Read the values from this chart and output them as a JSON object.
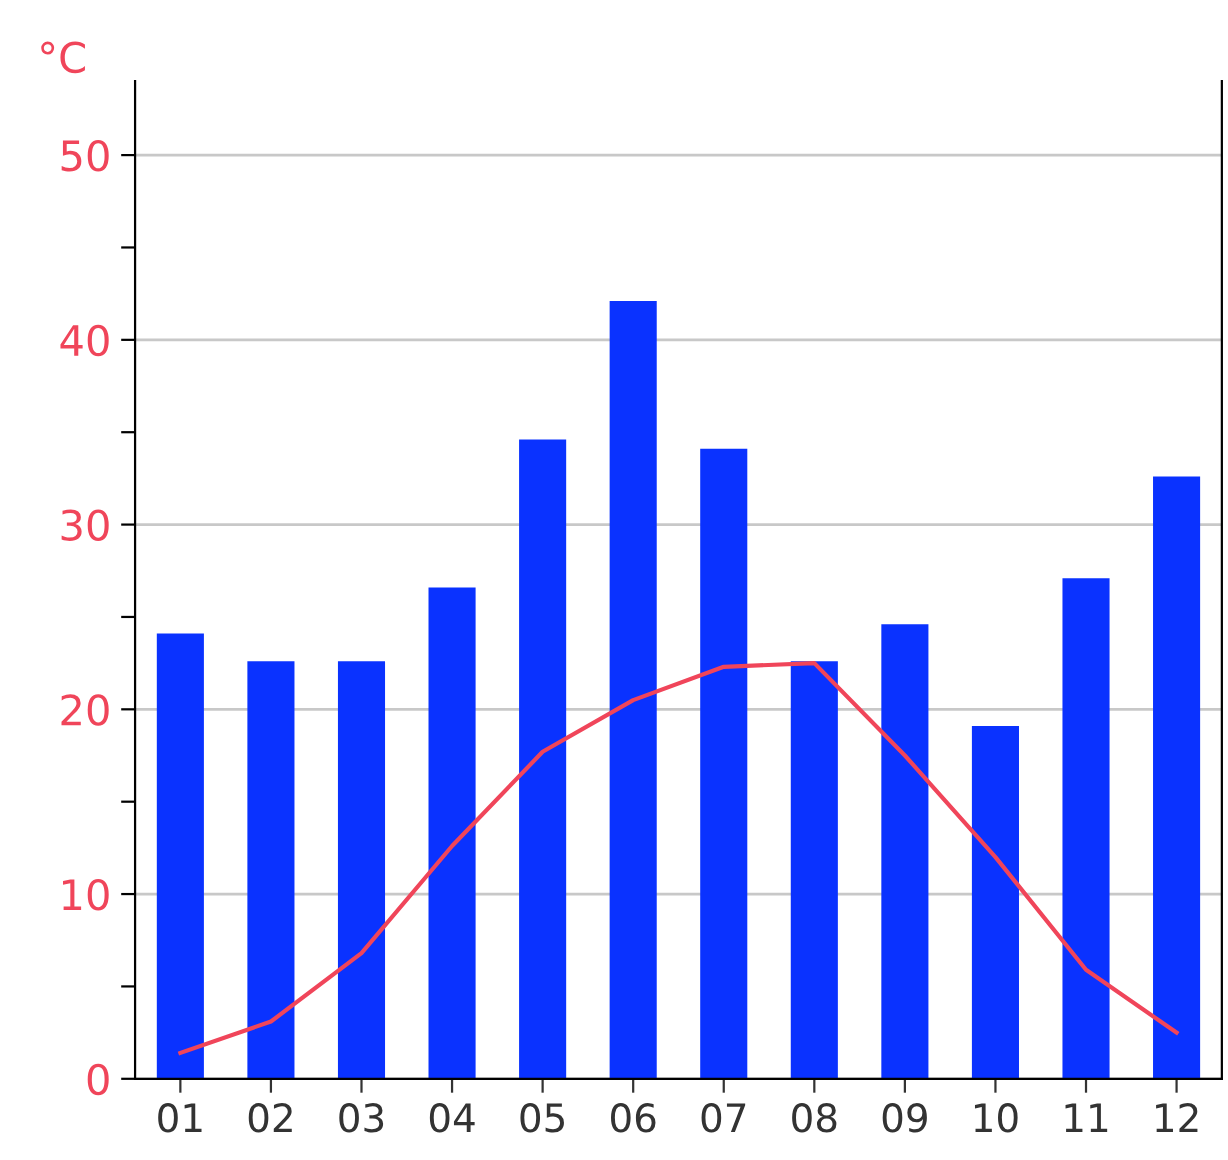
{
  "chart_data": {
    "type": "bar",
    "ylabel": "°C",
    "categories": [
      "01",
      "02",
      "03",
      "04",
      "05",
      "06",
      "07",
      "08",
      "09",
      "10",
      "11",
      "12"
    ],
    "series": [
      {
        "color": "#0a32ff",
        "values": [
          24.1,
          22.6,
          22.6,
          26.6,
          34.6,
          42.1,
          34.1,
          22.6,
          24.6,
          19.1,
          27.1,
          32.6
        ]
      },
      {
        "type": "line",
        "color": "#f0455a",
        "values": [
          1.4,
          3.1,
          6.8,
          12.6,
          17.7,
          20.5,
          22.3,
          22.5,
          17.5,
          12,
          5.9,
          2.5
        ]
      }
    ],
    "ylim": [
      0,
      54
    ],
    "yticks": [
      0,
      {
        "value": 5,
        "label": null
      },
      10,
      {
        "value": 15,
        "label": null
      },
      20,
      {
        "value": 25,
        "label": null
      },
      30,
      {
        "value": 35,
        "label": null
      },
      40,
      {
        "value": 45,
        "label": null
      },
      50
    ],
    "grid": "y",
    "legend": false,
    "marker": "none",
    "line_style": "solid"
  }
}
